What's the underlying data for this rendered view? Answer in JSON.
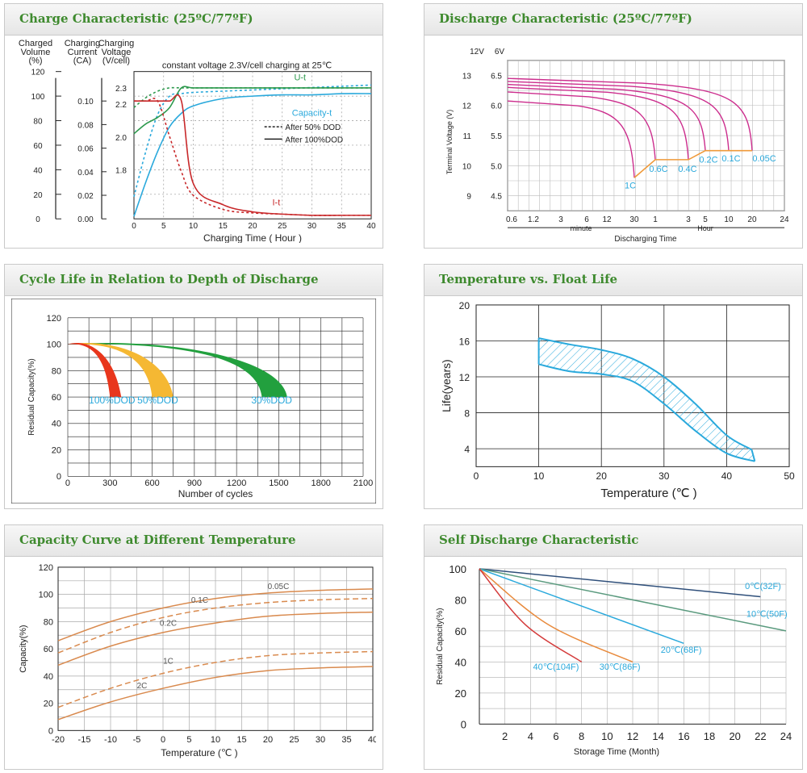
{
  "colors": {
    "title": "#3e8a2e",
    "blue": "#2aa9dc",
    "green": "#2e9a4e",
    "red": "#c8282a",
    "orange": "#e89a3c",
    "magenta": "#cc2d8d",
    "amber": "#ef9a3a"
  },
  "chart_data": [
    {
      "id": "charge",
      "type": "line",
      "title": "Charge Characteristic (25ºC/77ºF)",
      "axis_titles": {
        "volume": [
          "Charged",
          "Volume",
          "(%)"
        ],
        "current": [
          "Charging",
          "Current",
          "(CA)"
        ],
        "voltage": [
          "Charging",
          "Voltage",
          "(V/cell)"
        ]
      },
      "volume_ticks": [
        "120",
        "100",
        "80",
        "60",
        "40",
        "20",
        "0"
      ],
      "current_ticks": [
        "0.10",
        "0.08",
        "0.06",
        "0.04",
        "0.02",
        "0.00"
      ],
      "voltage_ticks": [
        "2.3",
        "2.2",
        "2.0",
        "1.8"
      ],
      "x_ticks": [
        "0",
        "5",
        "10",
        "15",
        "20",
        "25",
        "30",
        "35",
        "40"
      ],
      "xlabel": "Charging Time ( Hour )",
      "annotation": "constant voltage 2.3V/cell charging at 25℃",
      "legend": [
        "After 50% DOD",
        "After 100%DOD"
      ],
      "curve_labels": {
        "voltage": "U-t",
        "capacity": "Capacity-t",
        "current": "I-t"
      },
      "x": [
        0,
        2,
        4,
        6,
        8,
        10,
        15,
        20,
        25,
        30,
        35,
        40
      ],
      "series": [
        {
          "name": "Capacity-t (100% DOD)",
          "unit": "%",
          "values": [
            2,
            30,
            55,
            75,
            86,
            92,
            98,
            100,
            101,
            101,
            102,
            102
          ]
        },
        {
          "name": "Capacity-t (50% DOD)",
          "unit": "%",
          "values": [
            18,
            55,
            85,
            100,
            102,
            103,
            104,
            105,
            106,
            107,
            108,
            109
          ]
        },
        {
          "name": "U-t (100% DOD)",
          "unit": "V/cell",
          "values": [
            2.02,
            2.08,
            2.12,
            2.18,
            2.3,
            2.3,
            2.3,
            2.3,
            2.3,
            2.3,
            2.3,
            2.3
          ]
        },
        {
          "name": "U-t (50% DOD)",
          "unit": "V/cell",
          "values": [
            2.18,
            2.24,
            2.28,
            2.3,
            2.3,
            2.3,
            2.3,
            2.3,
            2.3,
            2.3,
            2.3,
            2.3
          ]
        },
        {
          "name": "I-t (100% DOD)",
          "unit": "CA",
          "values": [
            0.1,
            0.1,
            0.1,
            0.1,
            0.1,
            0.03,
            0.012,
            0.006,
            0.004,
            0.003,
            0.003,
            0.003
          ]
        },
        {
          "name": "I-t (50% DOD)",
          "unit": "CA",
          "values": [
            0.1,
            0.1,
            0.1,
            0.07,
            0.04,
            0.02,
            0.008,
            0.005,
            0.004,
            0.003,
            0.003,
            0.003
          ]
        }
      ]
    },
    {
      "id": "discharge",
      "type": "line",
      "title": "Discharge Characteristic (25ºC/77ºF)",
      "y_titles": [
        "12V",
        "6V"
      ],
      "ylabel": "Terminal Voltage (V)",
      "y12_ticks": [
        "13",
        "12",
        "11",
        "10",
        "9"
      ],
      "y6_ticks": [
        "6.5",
        "6.0",
        "5.5",
        "5.0",
        "4.5"
      ],
      "x_ticks": [
        "0.6",
        "1.2",
        "3",
        "6",
        "12",
        "30",
        "1",
        "3",
        "5",
        "10",
        "20",
        "24"
      ],
      "x_groups": [
        "minute",
        "Hour"
      ],
      "xlabel": "Discharging Time",
      "rate_labels": [
        "1C",
        "0.6C",
        "0.4C",
        "0.2C",
        "0.1C",
        "0.05C"
      ],
      "series": [
        {
          "name": "1C",
          "start_v": 12.15,
          "end_v": 9.6,
          "end_time": "30 min"
        },
        {
          "name": "0.6C",
          "start_v": 12.45,
          "end_v": 10.2,
          "end_time": "1 h"
        },
        {
          "name": "0.4C",
          "start_v": 12.6,
          "end_v": 10.2,
          "end_time": "3 h"
        },
        {
          "name": "0.2C",
          "start_v": 12.7,
          "end_v": 10.5,
          "end_time": "5 h"
        },
        {
          "name": "0.1C",
          "start_v": 12.8,
          "end_v": 10.5,
          "end_time": "10 h"
        },
        {
          "name": "0.05C",
          "start_v": 12.9,
          "end_v": 10.5,
          "end_time": "20 h"
        }
      ]
    },
    {
      "id": "cycle",
      "type": "area",
      "title": "Cycle Life in Relation to Depth of Discharge",
      "ylabel": "Residual Capacity(%)",
      "xlabel": "Number of cycles",
      "y_ticks": [
        "120",
        "100",
        "80",
        "60",
        "40",
        "20",
        "0"
      ],
      "x_ticks": [
        "0",
        "300",
        "600",
        "900",
        "1200",
        "1500",
        "1800",
        "2100"
      ],
      "ylim": [
        0,
        120
      ],
      "xlim": [
        0,
        2100
      ],
      "series": [
        {
          "name": "100%DOD",
          "end_cycles": [
            300,
            380
          ],
          "end_capacity": 60
        },
        {
          "name": "50%DOD",
          "end_cycles": [
            600,
            750
          ],
          "end_capacity": 60
        },
        {
          "name": "30%DOD",
          "end_cycles": [
            1380,
            1560
          ],
          "end_capacity": 60
        }
      ]
    },
    {
      "id": "float",
      "type": "area",
      "title": "Temperature vs. Float Life",
      "ylabel": "Life(years)",
      "xlabel": "Temperature (℃ )",
      "y_ticks": [
        "20",
        "16",
        "12",
        "8",
        "4"
      ],
      "x_ticks": [
        "0",
        "10",
        "20",
        "30",
        "40",
        "50"
      ],
      "xlim": [
        0,
        50
      ],
      "ylim": [
        2,
        20
      ],
      "series": [
        {
          "name": "upper",
          "x": [
            10,
            15,
            20,
            25,
            30,
            35,
            40,
            44
          ],
          "values": [
            16.3,
            15.6,
            15,
            14,
            12,
            9,
            5.5,
            3.9
          ]
        },
        {
          "name": "lower",
          "x": [
            10,
            15,
            20,
            25,
            30,
            35,
            40,
            44.5
          ],
          "values": [
            13.4,
            12.6,
            12.3,
            11.5,
            9,
            6,
            3.5,
            2.6
          ]
        }
      ]
    },
    {
      "id": "capacity_temp",
      "type": "line",
      "title": "Capacity Curve at Different Temperature",
      "ylabel": "Capacity(%)",
      "xlabel": "Temperature (℃ )",
      "y_ticks": [
        "120",
        "100",
        "80",
        "60",
        "40",
        "20",
        "0"
      ],
      "x_ticks": [
        "-20",
        "-15",
        "-10",
        "-5",
        "0",
        "5",
        "10",
        "15",
        "20",
        "25",
        "30",
        "35",
        "40"
      ],
      "xlim": [
        -20,
        40
      ],
      "ylim": [
        0,
        120
      ],
      "x": [
        -20,
        -10,
        0,
        10,
        20,
        30,
        40
      ],
      "series": [
        {
          "name": "0.05C",
          "values": [
            66,
            80,
            90,
            97,
            101,
            103,
            104
          ]
        },
        {
          "name": "0.1C",
          "values": [
            57,
            72,
            83,
            90,
            94,
            96,
            97
          ]
        },
        {
          "name": "0.2C",
          "values": [
            48,
            62,
            72,
            79,
            84,
            86,
            87
          ]
        },
        {
          "name": "1C",
          "values": [
            17,
            31,
            42,
            50,
            55,
            57,
            58
          ]
        },
        {
          "name": "2C",
          "values": [
            8,
            21,
            31,
            39,
            44,
            46,
            47
          ]
        }
      ],
      "dashed": [
        "0.1C",
        "1C"
      ]
    },
    {
      "id": "self_discharge",
      "type": "line",
      "title": "Self Discharge Characteristic",
      "ylabel": "Residual Capacity(%)",
      "xlabel": "Storage Time (Month)",
      "y_ticks": [
        "100",
        "80",
        "60",
        "40",
        "20",
        "0"
      ],
      "x_ticks": [
        "2",
        "4",
        "6",
        "8",
        "10",
        "12",
        "14",
        "16",
        "18",
        "20",
        "22",
        "24"
      ],
      "xlim": [
        0,
        24
      ],
      "ylim": [
        0,
        100
      ],
      "series": [
        {
          "name": "0℃(32F)",
          "x": [
            0,
            22
          ],
          "values": [
            100,
            82
          ],
          "color": "#2f4f7a"
        },
        {
          "name": "10℃(50F)",
          "x": [
            0,
            24
          ],
          "values": [
            100,
            60
          ],
          "color": "#5a9a7e"
        },
        {
          "name": "20℃(68F)",
          "x": [
            0,
            16
          ],
          "values": [
            100,
            52
          ],
          "color": "#2aa9dc"
        },
        {
          "name": "30℃(86F)",
          "x": [
            0,
            12
          ],
          "values": [
            100,
            40
          ],
          "color": "#e88a3c"
        },
        {
          "name": "40℃(104F)",
          "x": [
            0,
            8
          ],
          "values": [
            100,
            40
          ],
          "color": "#d43a3a"
        }
      ]
    }
  ]
}
